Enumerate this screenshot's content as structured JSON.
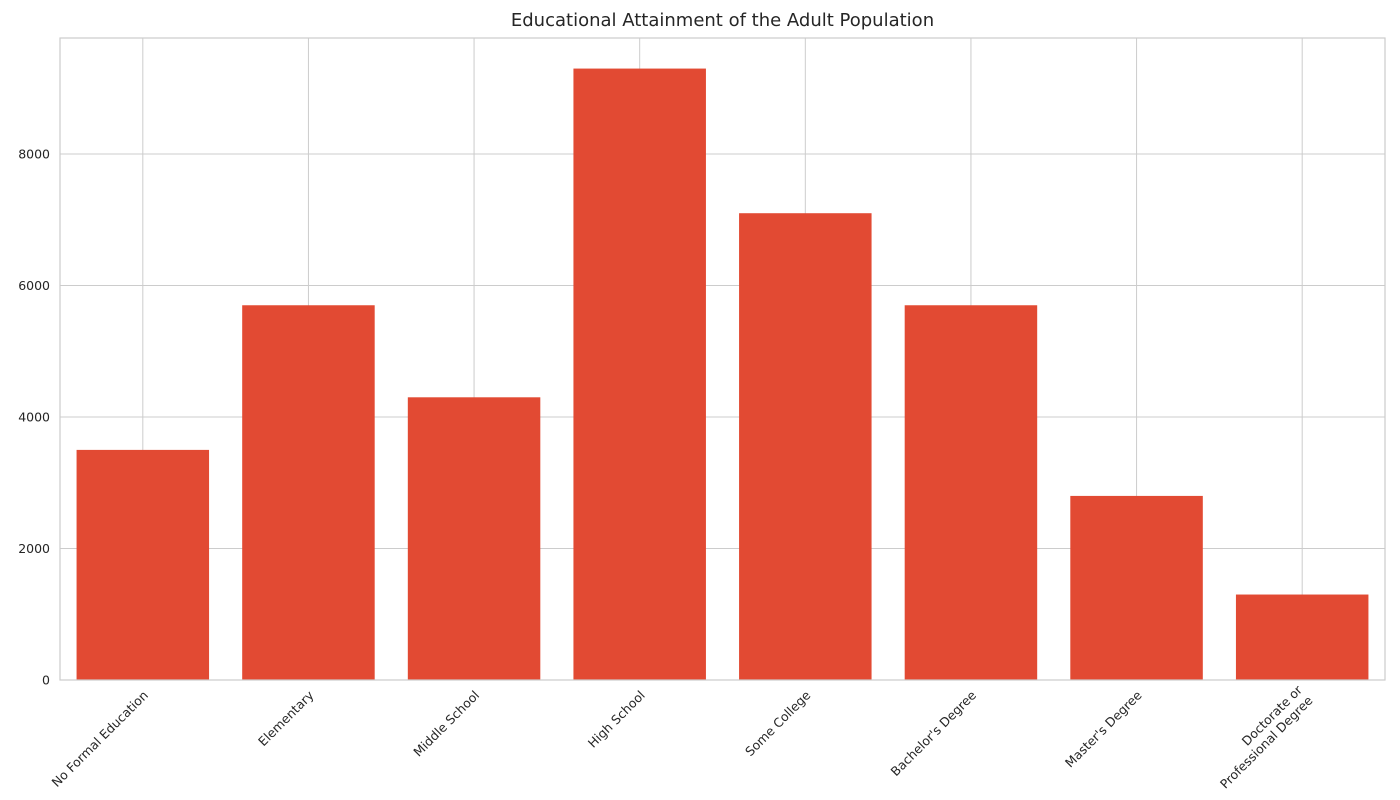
{
  "chart_data": {
    "type": "bar",
    "title": "Educational Attainment of the Adult Population",
    "xlabel": "",
    "ylabel": "",
    "categories": [
      "No Formal Education",
      "Elementary",
      "Middle School",
      "High School",
      "Some College",
      "Bachelor's Degree",
      "Master's Degree",
      "Doctorate or\nProfessional Degree"
    ],
    "values": [
      3500,
      5700,
      4300,
      9300,
      7100,
      5700,
      2800,
      1300
    ],
    "ylim": [
      0,
      9765
    ],
    "yticks": [
      0,
      2000,
      4000,
      6000,
      8000
    ],
    "grid": true,
    "bar_color": "#e24a33",
    "grid_color": "#cccccc"
  }
}
